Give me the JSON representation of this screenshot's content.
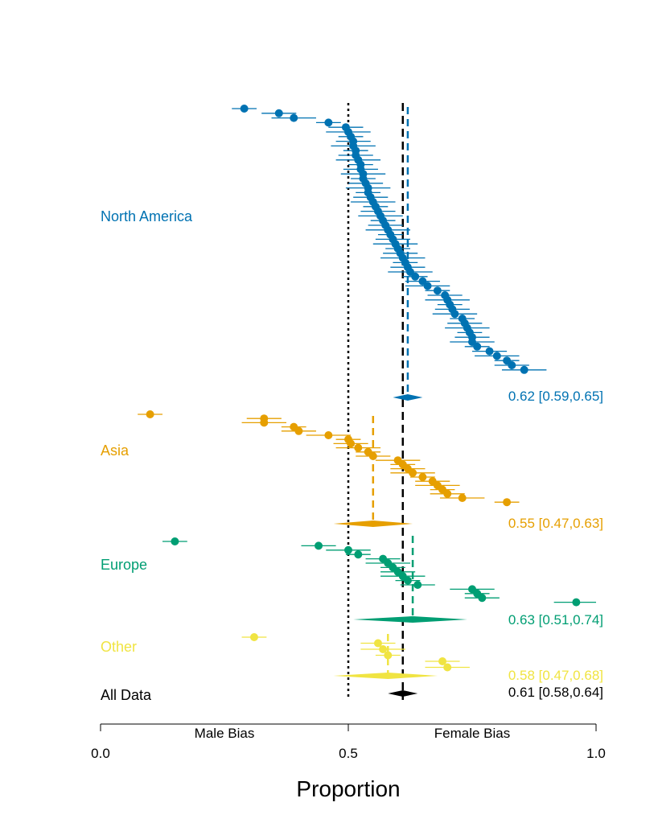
{
  "chart_data": {
    "type": "forest",
    "xlabel": "Proportion",
    "xlim": [
      0,
      1
    ],
    "xticks": [
      "0.0",
      "0.5",
      "1.0"
    ],
    "axis_annotations": [
      "Male Bias",
      "Female Bias"
    ],
    "reference_lines": [
      {
        "value": 0.5,
        "style": "dotted",
        "color": "#000000"
      },
      {
        "value": 0.61,
        "style": "dashed",
        "color": "#000000"
      }
    ],
    "groups": [
      {
        "name": "North America",
        "color": "#0072B2",
        "estimate": 0.62,
        "summary_label": "0.62 [0.59,0.65]",
        "ci": [
          0.59,
          0.65
        ],
        "points": [
          0.29,
          0.36,
          0.39,
          0.46,
          0.495,
          0.5,
          0.505,
          0.51,
          0.51,
          0.515,
          0.515,
          0.52,
          0.525,
          0.525,
          0.53,
          0.53,
          0.535,
          0.54,
          0.54,
          0.545,
          0.55,
          0.555,
          0.56,
          0.565,
          0.57,
          0.575,
          0.58,
          0.585,
          0.59,
          0.595,
          0.6,
          0.605,
          0.61,
          0.615,
          0.62,
          0.625,
          0.635,
          0.65,
          0.66,
          0.68,
          0.695,
          0.7,
          0.705,
          0.71,
          0.715,
          0.73,
          0.735,
          0.74,
          0.745,
          0.75,
          0.75,
          0.76,
          0.785,
          0.8,
          0.82,
          0.83,
          0.855
        ]
      },
      {
        "name": "Asia",
        "color": "#E69F00",
        "estimate": 0.55,
        "summary_label": "0.55 [0.47,0.63]",
        "ci": [
          0.47,
          0.63
        ],
        "points": [
          0.1,
          0.33,
          0.33,
          0.39,
          0.4,
          0.46,
          0.5,
          0.505,
          0.52,
          0.54,
          0.55,
          0.6,
          0.61,
          0.62,
          0.63,
          0.65,
          0.67,
          0.68,
          0.69,
          0.7,
          0.73,
          0.82
        ]
      },
      {
        "name": "Europe",
        "color": "#009E73",
        "estimate": 0.63,
        "summary_label": "0.63 [0.51,0.74]",
        "ci": [
          0.51,
          0.74
        ],
        "points": [
          0.15,
          0.44,
          0.5,
          0.52,
          0.57,
          0.58,
          0.59,
          0.6,
          0.61,
          0.62,
          0.64,
          0.75,
          0.76,
          0.77,
          0.96
        ]
      },
      {
        "name": "Other",
        "color": "#F0E442",
        "estimate": 0.58,
        "summary_label": "0.58 [0.47,0.68]",
        "ci": [
          0.47,
          0.68
        ],
        "points": [
          0.31,
          0.56,
          0.57,
          0.58,
          0.69,
          0.7
        ]
      },
      {
        "name": "All Data",
        "color": "#000000",
        "estimate": 0.61,
        "summary_label": "0.61 [0.58,0.64]",
        "ci": [
          0.58,
          0.64
        ],
        "points": []
      }
    ]
  }
}
